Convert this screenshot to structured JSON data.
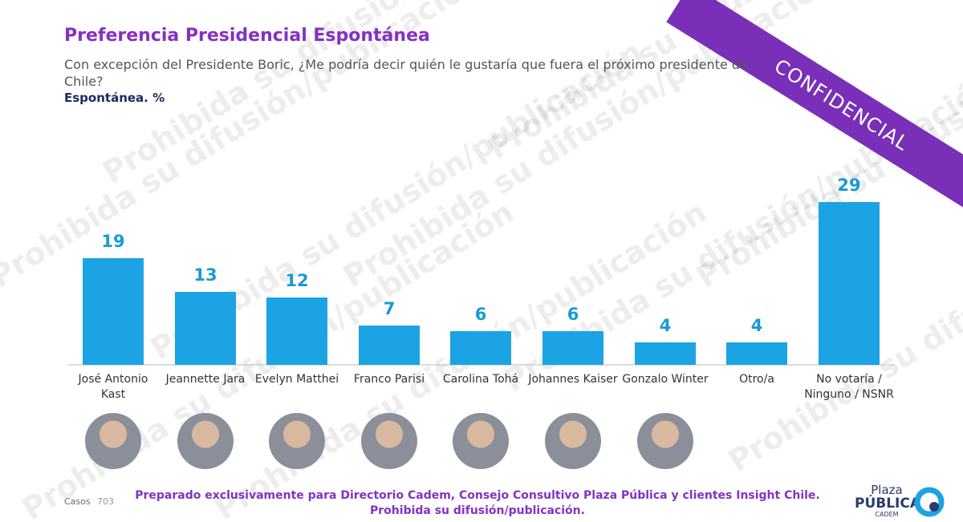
{
  "chart_data": {
    "type": "bar",
    "title": "Preferencia Presidencial Espontánea",
    "subtitle": "Con excepción del Presidente Boric, ¿Me podría decir quién le gustaría que fuera el próximo presidente de Chile?",
    "unit_label": "Espontánea. %",
    "categories": [
      "José Antonio Kast",
      "Jeannette Jara",
      "Evelyn Matthei",
      "Franco Parisi",
      "Carolina Tohá",
      "Johannes Kaiser",
      "Gonzalo Winter",
      "Otro/a",
      "No votaría / Ninguno / NSNR"
    ],
    "values": [
      19,
      13,
      12,
      7,
      6,
      6,
      4,
      4,
      29
    ],
    "color": "#1ca3e3"
  },
  "banner": "CONFIDENCIAL",
  "watermark": "Prohibida su difusión/publicación",
  "footer": {
    "cases_label": "Casos",
    "cases_value": "703",
    "note_lines": [
      "Preparado exclusivamente para Directorio Cadem, Consejo Consultivo Plaza Pública y clientes Insight Chile.",
      "Prohibida su difusión/publicación."
    ]
  },
  "logo": {
    "line1": "Plaza",
    "line2": "PÚBLICA",
    "line3": "CADEM"
  }
}
